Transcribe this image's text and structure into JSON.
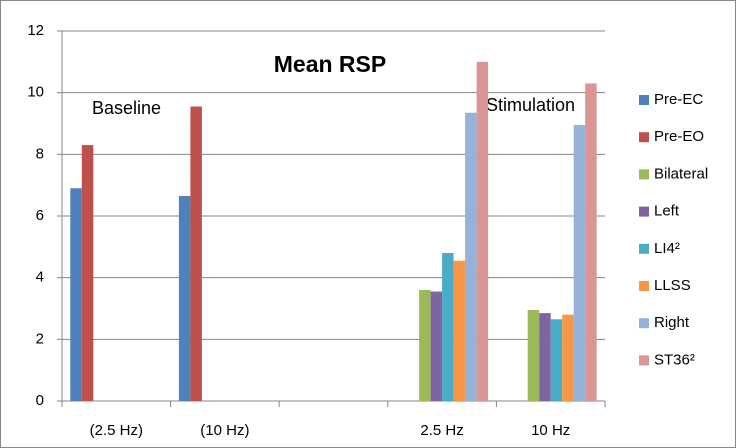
{
  "chart_data": {
    "type": "bar",
    "title": "Mean RSP",
    "annotations": [
      "Baseline",
      "Stimulation"
    ],
    "categories": [
      "(2.5 Hz)",
      "(10 Hz)",
      null,
      "2.5 Hz",
      "10 Hz"
    ],
    "series": [
      {
        "name": "Pre-EC",
        "color": "#4f81bd",
        "values": [
          6.9,
          6.65,
          null,
          null,
          null
        ]
      },
      {
        "name": "Pre-EO",
        "color": "#c0504d",
        "values": [
          8.3,
          9.55,
          null,
          null,
          null
        ]
      },
      {
        "name": "Bilateral",
        "color": "#9bbb59",
        "values": [
          null,
          null,
          null,
          3.6,
          2.95
        ]
      },
      {
        "name": "Left",
        "color": "#8064a2",
        "values": [
          null,
          null,
          null,
          3.55,
          2.85
        ]
      },
      {
        "name": "LI4²",
        "color": "#4bacc6",
        "values": [
          null,
          null,
          null,
          4.8,
          2.65
        ]
      },
      {
        "name": "LLSS",
        "color": "#f79646",
        "values": [
          null,
          null,
          null,
          4.55,
          2.8
        ]
      },
      {
        "name": "Right",
        "color": "#95b3d7",
        "values": [
          null,
          null,
          null,
          9.35,
          8.95
        ]
      },
      {
        "name": "ST36²",
        "color": "#d99694",
        "values": [
          null,
          null,
          null,
          11.0,
          10.3
        ]
      }
    ],
    "ylim": [
      0,
      12
    ],
    "yticks": [
      0,
      2,
      4,
      6,
      8,
      10,
      12
    ],
    "grid": true,
    "legend": "right"
  }
}
